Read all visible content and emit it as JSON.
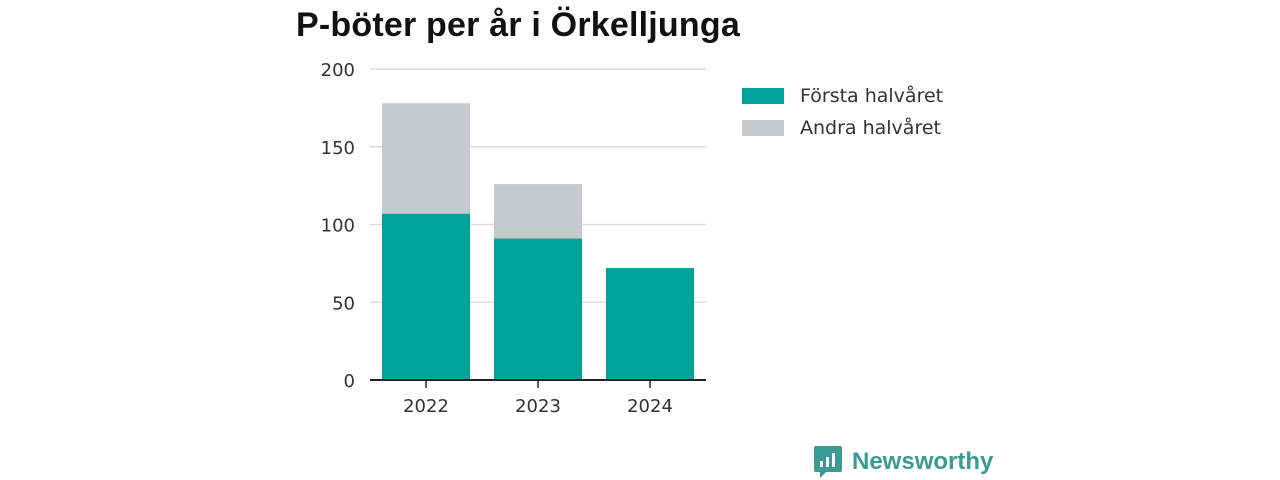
{
  "colors": {
    "first_half": "#00a39a",
    "second_half": "#c8c8cf",
    "brand": "#3a9a94"
  },
  "brand": {
    "name": "Newsworthy",
    "icon": "newsworthy-logo-icon"
  },
  "chart_data": {
    "type": "bar",
    "stacked": true,
    "title": "P-böter per år i Örkelljunga",
    "categories": [
      "2022",
      "2023",
      "2024"
    ],
    "series": [
      {
        "name": "Första halvåret",
        "values": [
          107,
          91,
          72
        ]
      },
      {
        "name": "Andra halvåret",
        "values": [
          71,
          35,
          0
        ]
      }
    ],
    "ylim": [
      0,
      200
    ],
    "yticks": [
      0,
      50,
      100,
      150,
      200
    ],
    "grid": true,
    "legend": "right"
  }
}
